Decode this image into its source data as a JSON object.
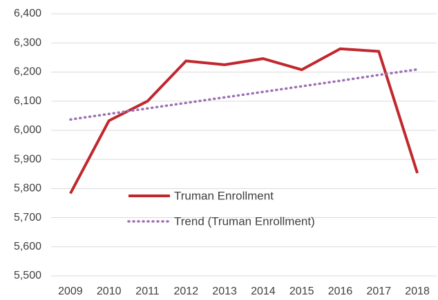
{
  "chart_data": {
    "type": "line",
    "categories": [
      "2009",
      "2010",
      "2011",
      "2012",
      "2013",
      "2014",
      "2015",
      "2016",
      "2017",
      "2018"
    ],
    "series": [
      {
        "name": "Truman Enrollment",
        "color": "#c0282d",
        "style": "solid",
        "values": [
          5783,
          6033,
          6100,
          6238,
          6225,
          6246,
          6208,
          6280,
          6271,
          5853
        ]
      },
      {
        "name": "Trend (Truman Enrollment)",
        "color": "#9e6eb5",
        "style": "dotted",
        "values": [
          6037,
          6056,
          6075,
          6094,
          6113,
          6132,
          6151,
          6170,
          6190,
          6209
        ]
      }
    ],
    "ylim": [
      5500,
      6400
    ],
    "yticks": [
      {
        "value": 5500,
        "label": "5,500"
      },
      {
        "value": 5600,
        "label": "5,600"
      },
      {
        "value": 5700,
        "label": "5,700"
      },
      {
        "value": 5800,
        "label": "5,800"
      },
      {
        "value": 5900,
        "label": "5,900"
      },
      {
        "value": 6000,
        "label": "6,000"
      },
      {
        "value": 6100,
        "label": "6,100"
      },
      {
        "value": 6200,
        "label": "6,200"
      },
      {
        "value": 6300,
        "label": "6,300"
      },
      {
        "value": 6400,
        "label": "6,400"
      }
    ],
    "grid": true,
    "legend": "center"
  }
}
